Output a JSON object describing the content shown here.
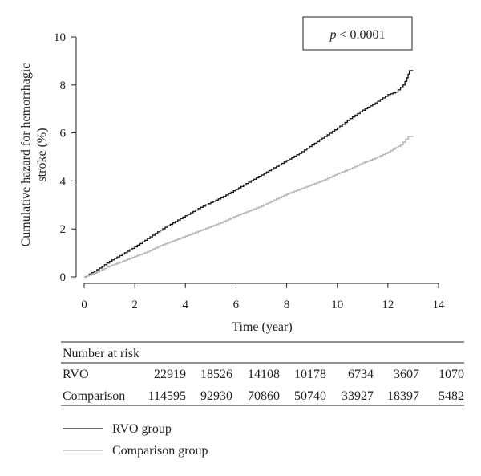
{
  "chart_data": {
    "type": "line",
    "xlabel": "Time (year)",
    "ylabel_line1": "Cumulative hazard for hemorrhagic",
    "ylabel_line2": "stroke (%)",
    "xlim": [
      0,
      14
    ],
    "ylim": [
      0,
      10
    ],
    "x_ticks": [
      "0",
      "2",
      "4",
      "6",
      "8",
      "10",
      "12",
      "14"
    ],
    "y_ticks": [
      "0",
      "2",
      "4",
      "6",
      "8",
      "10"
    ],
    "grid": false,
    "annotation": {
      "p_italic": "p",
      "p_rest": " < 0.0001"
    },
    "series": [
      {
        "name": "RVO group",
        "color": "#1a1a1a",
        "x": [
          0,
          0.5,
          1,
          1.5,
          2,
          2.5,
          3,
          3.5,
          4,
          4.5,
          5,
          5.5,
          6,
          6.5,
          7,
          7.5,
          8,
          8.5,
          9,
          9.5,
          10,
          10.5,
          11,
          11.5,
          12,
          12.3,
          12.6,
          12.75,
          12.85,
          13
        ],
        "y": [
          0,
          0.3,
          0.65,
          0.95,
          1.25,
          1.6,
          1.95,
          2.25,
          2.55,
          2.85,
          3.1,
          3.35,
          3.65,
          3.95,
          4.25,
          4.55,
          4.85,
          5.15,
          5.5,
          5.85,
          6.2,
          6.6,
          6.95,
          7.25,
          7.6,
          7.7,
          8.0,
          8.3,
          8.6,
          8.6
        ]
      },
      {
        "name": "Comparison group",
        "color": "#b8b8b8",
        "x": [
          0,
          0.5,
          1,
          1.5,
          2,
          2.5,
          3,
          3.5,
          4,
          4.5,
          5,
          5.5,
          6,
          6.5,
          7,
          7.5,
          8,
          8.5,
          9,
          9.5,
          10,
          10.5,
          11,
          11.5,
          12,
          12.5,
          12.8,
          13
        ],
        "y": [
          0,
          0.2,
          0.45,
          0.65,
          0.85,
          1.05,
          1.3,
          1.5,
          1.7,
          1.9,
          2.1,
          2.3,
          2.55,
          2.75,
          2.95,
          3.2,
          3.45,
          3.65,
          3.85,
          4.05,
          4.3,
          4.5,
          4.75,
          4.95,
          5.2,
          5.5,
          5.85,
          5.85
        ]
      }
    ]
  },
  "risk_table": {
    "header": "Number at risk",
    "rows": [
      {
        "label": "RVO",
        "values": [
          "22919",
          "18526",
          "14108",
          "10178",
          "6734",
          "3607",
          "1070"
        ]
      },
      {
        "label": "Comparison",
        "values": [
          "114595",
          "92930",
          "70860",
          "50740",
          "33927",
          "18397",
          "5482"
        ]
      }
    ]
  },
  "legend": {
    "items": [
      {
        "label": "RVO group",
        "color": "#1a1a1a"
      },
      {
        "label": "Comparison group",
        "color": "#b8b8b8"
      }
    ]
  }
}
